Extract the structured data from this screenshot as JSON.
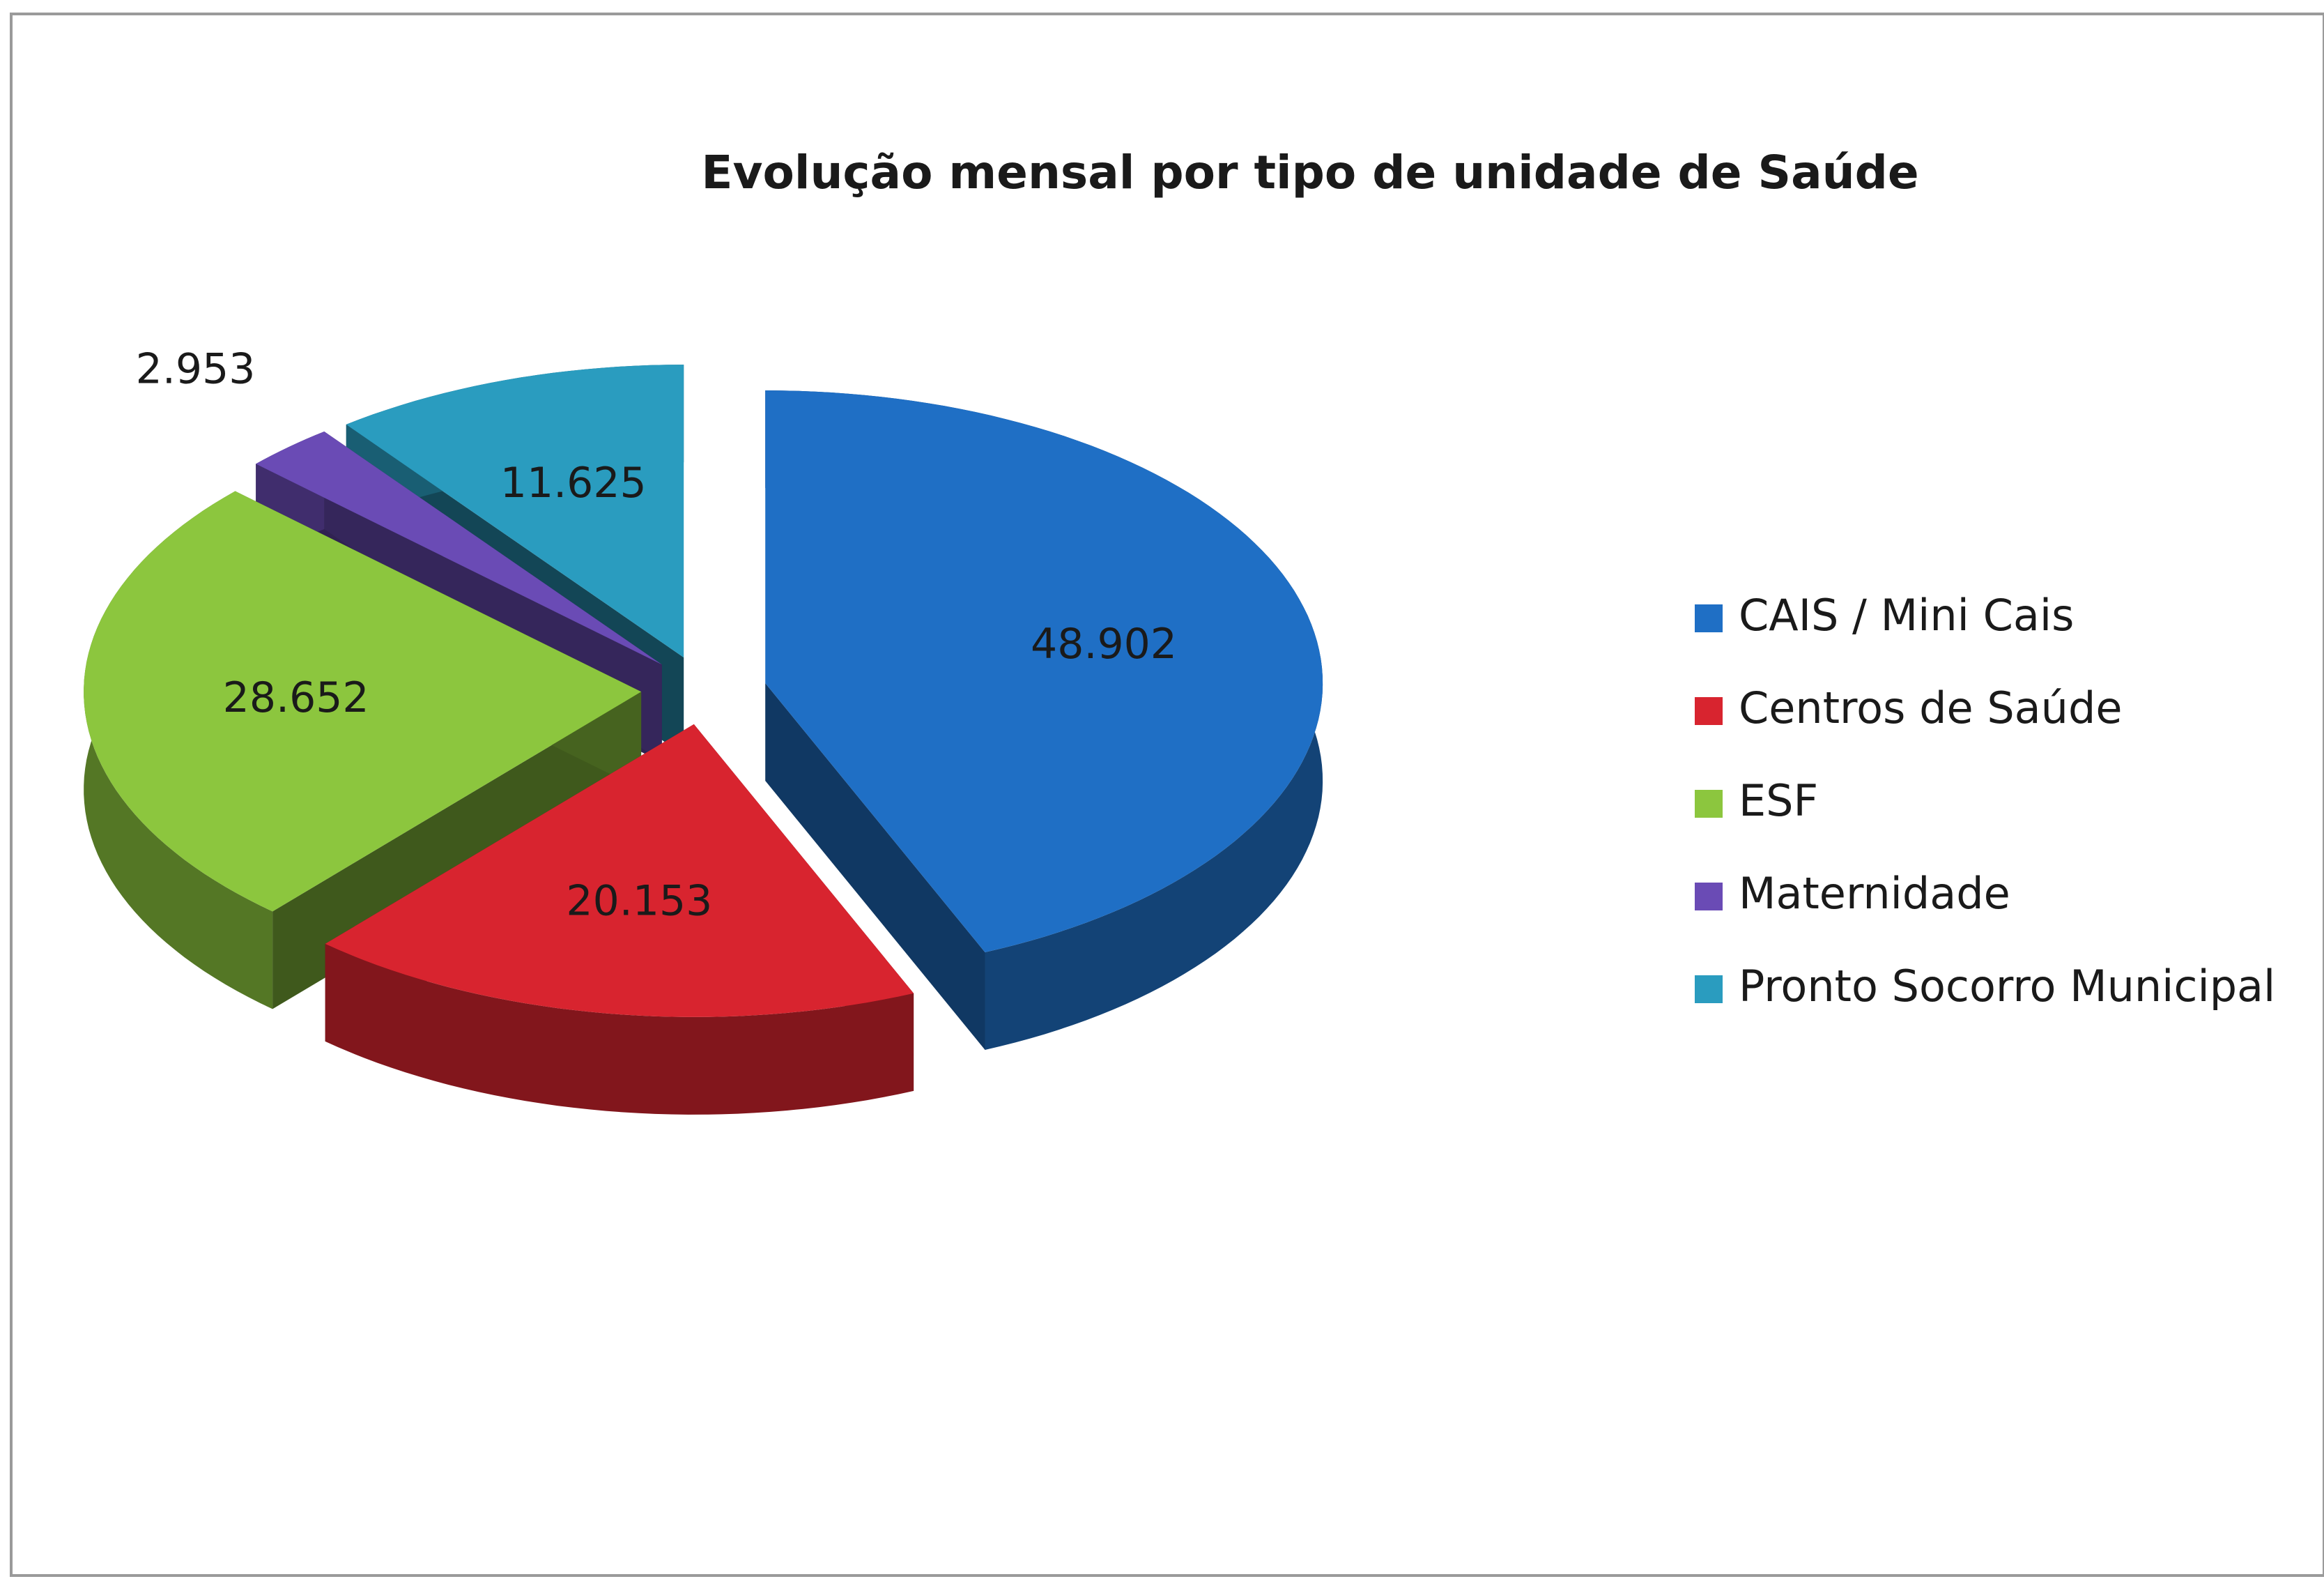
{
  "chart_data": {
    "type": "pie",
    "title": "Evolução mensal por tipo de unidade de Saúde",
    "categories": [
      "CAIS / Mini Cais",
      "Centros de Saúde",
      "ESF",
      "Maternidade",
      "Pronto Socorro Municipal"
    ],
    "values": [
      48902,
      20153,
      28652,
      2953,
      11625
    ],
    "value_labels": [
      "48.902",
      "20.153",
      "28.652",
      "2.953",
      "11.625"
    ],
    "colors": [
      "#1f6fc5",
      "#d8242f",
      "#8cc63e",
      "#6a4bb5",
      "#2a9cbf"
    ],
    "legend": "right"
  }
}
